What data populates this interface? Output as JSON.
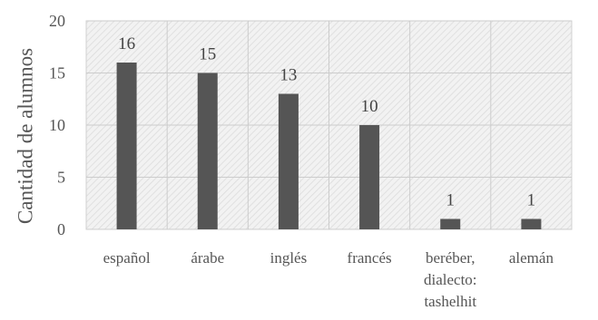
{
  "chart_data": {
    "type": "bar",
    "title": "",
    "xlabel": "",
    "ylabel": "Cantidad de alumnos",
    "ylim": [
      0,
      20
    ],
    "yticks": [
      0,
      5,
      10,
      15,
      20
    ],
    "grid": true,
    "categories": [
      [
        "español"
      ],
      [
        "árabe"
      ],
      [
        "inglés"
      ],
      [
        "francés"
      ],
      [
        "beréber,",
        "dialecto:",
        "tashelhit"
      ],
      [
        "alemán"
      ]
    ],
    "values": [
      16,
      15,
      13,
      10,
      1,
      1
    ],
    "colors": {
      "bar": "#555555",
      "plot_border": "#d0d0d0",
      "grid": "#cccccc",
      "hatch": "#dddddd"
    }
  }
}
